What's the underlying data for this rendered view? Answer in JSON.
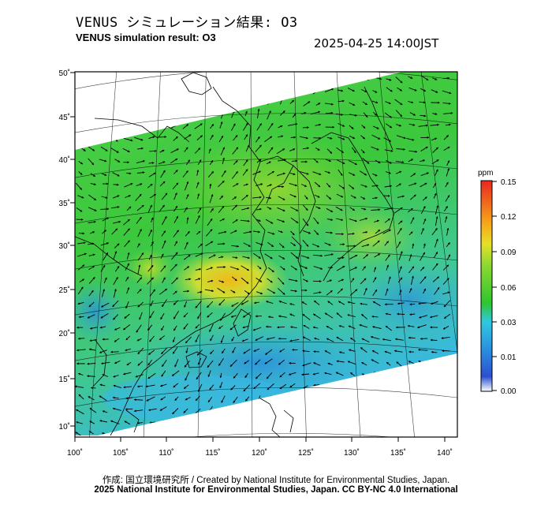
{
  "header": {
    "title_ja": "VENUS シミュレーション結果: O3",
    "title_en": "VENUS simulation result: O3",
    "timestamp": "2025-04-25 14:00JST"
  },
  "map": {
    "lon_ticks": [
      "100˚",
      "105˚",
      "110˚",
      "115˚",
      "120˚",
      "125˚",
      "130˚",
      "135˚",
      "140˚"
    ],
    "lat_ticks": [
      "10˚",
      "15˚",
      "20˚",
      "25˚",
      "30˚",
      "35˚",
      "40˚",
      "45˚",
      "50˚"
    ]
  },
  "colorbar": {
    "unit": "ppm",
    "ticks": [
      "0.00",
      "0.01",
      "0.03",
      "0.06",
      "0.09",
      "0.12",
      "0.15"
    ],
    "colors": [
      "#ffffff",
      "#2a6bdc",
      "#30c8e8",
      "#2ec62e",
      "#c8e82a",
      "#f7a51a",
      "#e8281e"
    ]
  },
  "footer": {
    "credit_line1": "作成: 国立環境研究所 / Created by National Institute for Environmental Studies, Japan.",
    "credit_line2": "2025 National Institute for Environmental Studies, Japan. CC BY-NC 4.0 International"
  }
}
